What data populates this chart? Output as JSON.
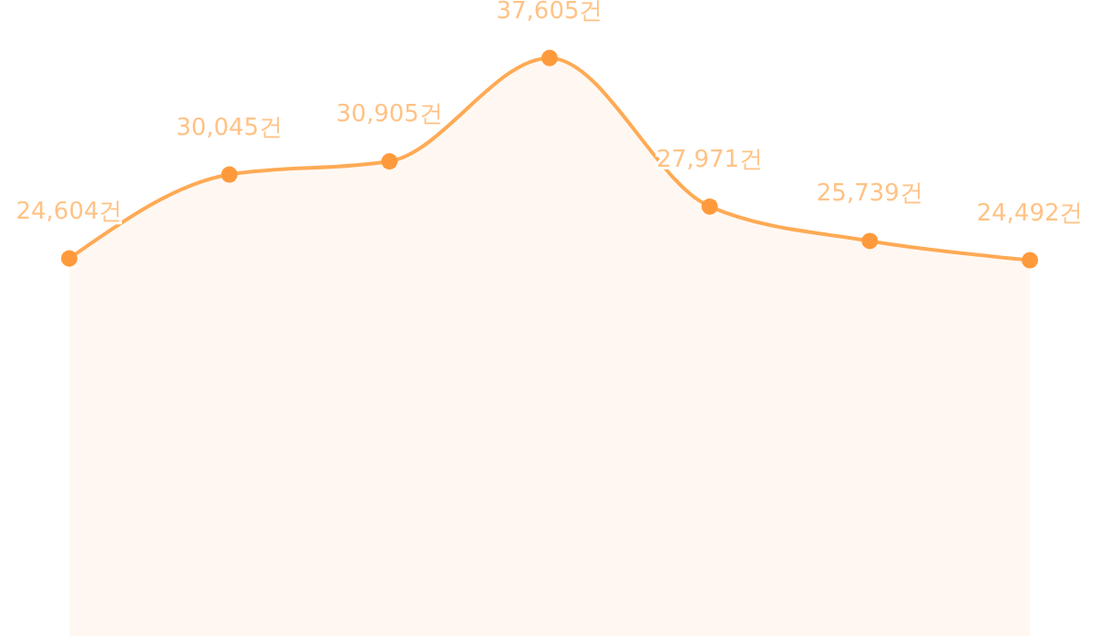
{
  "chart_data": {
    "type": "area",
    "categories": [
      null,
      null,
      null,
      null,
      null,
      null,
      null
    ],
    "series": [
      {
        "color": "#ffaa55",
        "values": [
          24604,
          30045,
          30905,
          37605,
          27971,
          25739,
          24492
        ],
        "value_labels": [
          "24,604건",
          "30,045건",
          "30,905건",
          "37,605건",
          "27,971건",
          "25,739건",
          "24,492건"
        ]
      }
    ],
    "marker": "circle",
    "tick_labels": false,
    "grid": false
  }
}
